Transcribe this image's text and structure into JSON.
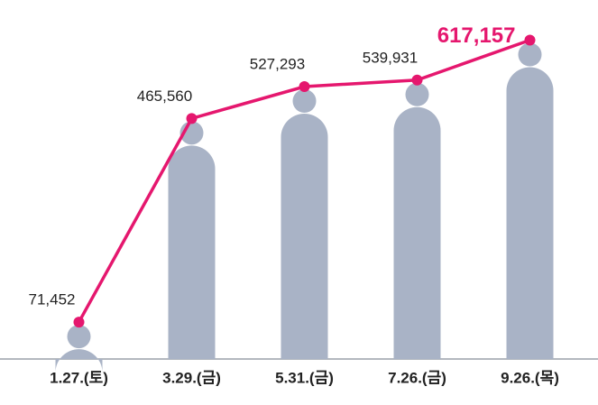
{
  "chart_data": {
    "type": "pictograph_line",
    "categories": [
      "1.27.(토)",
      "3.29.(금)",
      "5.31.(금)",
      "7.26.(금)",
      "9.26.(목)"
    ],
    "values": [
      71452,
      465560,
      527293,
      539931,
      617157
    ],
    "value_labels": [
      "71,452",
      "465,560",
      "527,293",
      "539,931",
      "617,157"
    ],
    "ylim": [
      0,
      660000
    ],
    "bar_color": "#a9b3c6",
    "line_color": "#e5176e",
    "label_color": "#222222"
  }
}
